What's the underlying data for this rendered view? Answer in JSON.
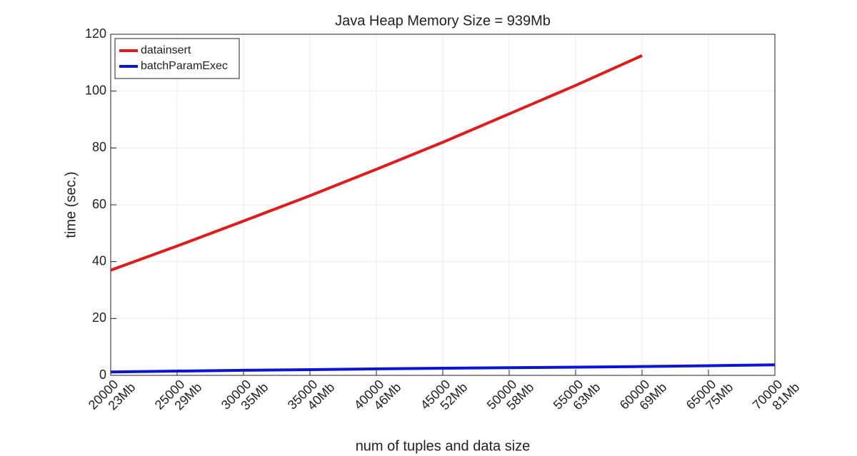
{
  "chart_data": {
    "type": "line",
    "title": "Java Heap Memory Size = 939Mb",
    "xlabel": "num of tuples and data size",
    "ylabel": "time (sec.)",
    "x": [
      20000,
      25000,
      30000,
      35000,
      40000,
      45000,
      50000,
      55000,
      60000,
      65000,
      70000
    ],
    "series": [
      {
        "name": "datainsert",
        "color": "#e31a1c",
        "values": [
          37,
          45.5,
          54.3,
          63.2,
          72.5,
          82,
          92,
          102,
          112.5,
          null,
          null
        ]
      },
      {
        "name": "batchParamExec",
        "color": "#0a14d8",
        "values": [
          1.2,
          1.5,
          1.8,
          2.0,
          2.3,
          2.5,
          2.7,
          2.9,
          3.1,
          3.4,
          3.7
        ]
      }
    ],
    "xlim": [
      20000,
      70000
    ],
    "xticks": [
      {
        "value": 20000,
        "label": "20000\n23Mb"
      },
      {
        "value": 25000,
        "label": "25000\n29Mb"
      },
      {
        "value": 30000,
        "label": "30000\n35Mb"
      },
      {
        "value": 35000,
        "label": "35000\n40Mb"
      },
      {
        "value": 40000,
        "label": "40000\n46Mb"
      },
      {
        "value": 45000,
        "label": "45000\n52Mb"
      },
      {
        "value": 50000,
        "label": "50000\n58Mb"
      },
      {
        "value": 55000,
        "label": "55000\n63Mb"
      },
      {
        "value": 60000,
        "label": "60000\n69Mb"
      },
      {
        "value": 65000,
        "label": "65000\n75Mb"
      },
      {
        "value": 70000,
        "label": "70000\n81Mb"
      }
    ],
    "ylim": [
      0,
      120
    ],
    "yticks": [
      0,
      20,
      40,
      60,
      80,
      100,
      120
    ],
    "grid": true,
    "legend": "upper-left"
  }
}
